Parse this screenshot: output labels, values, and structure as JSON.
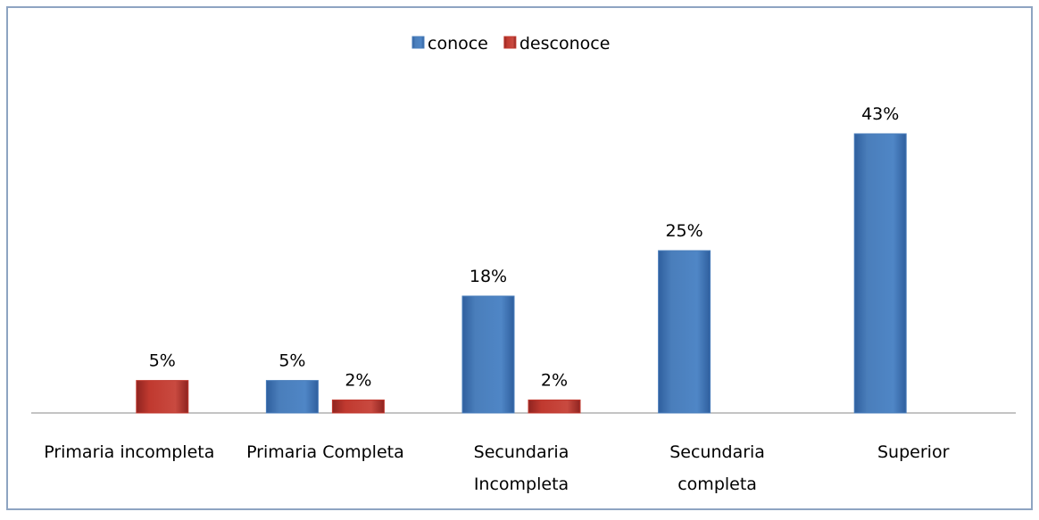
{
  "chart_data": {
    "type": "bar",
    "categories": [
      "Primaria incompleta",
      "Primaria Completa",
      "Secundaria\nIncompleta",
      "Secundaria\ncompleta",
      "Superior"
    ],
    "series": [
      {
        "name": "conoce",
        "color": "#4a7ebb",
        "values": [
          null,
          5,
          18,
          25,
          43
        ],
        "value_labels": [
          null,
          "5%",
          "18%",
          "25%",
          "43%"
        ]
      },
      {
        "name": "desconoce",
        "color": "#c0392f",
        "values": [
          5,
          2,
          2,
          null,
          null
        ],
        "value_labels": [
          "5%",
          "2%",
          "2%",
          null,
          null
        ]
      }
    ],
    "legend": "top"
  }
}
